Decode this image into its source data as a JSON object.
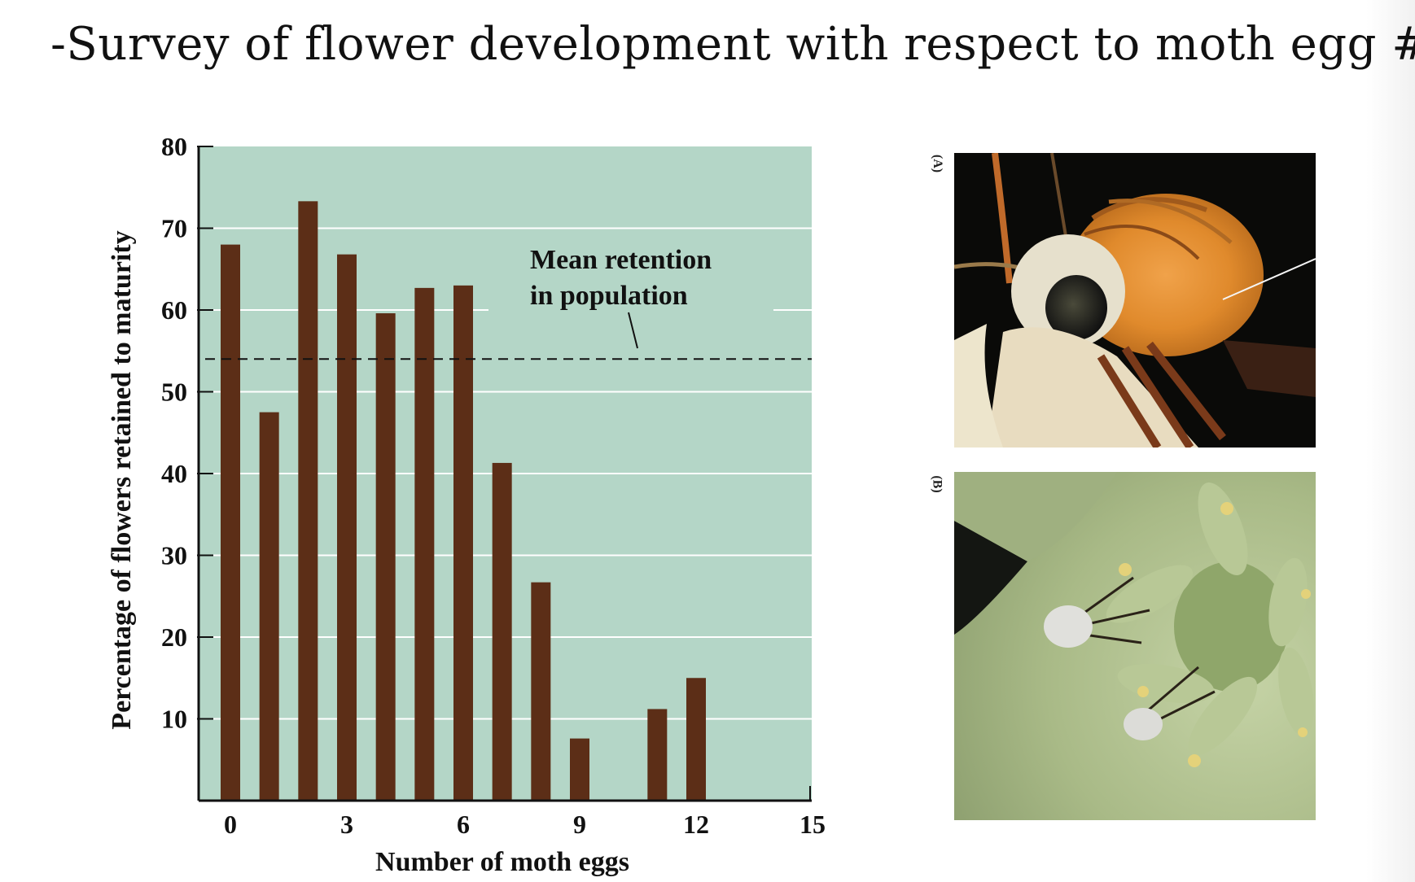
{
  "slide": {
    "title": "-Survey of flower development with respect to moth egg #s"
  },
  "colors": {
    "plot_background": "#b4d6c7",
    "bar": "#5c2e17",
    "gridline": "#ffffff",
    "axis": "#111111"
  },
  "chart_data": {
    "type": "bar",
    "xlabel": "Number of moth eggs",
    "ylabel": "Percentage of flowers retained to maturity",
    "x": [
      0,
      1,
      2,
      3,
      4,
      5,
      6,
      7,
      8,
      9,
      11,
      12
    ],
    "values": [
      68,
      47.5,
      73.3,
      66.8,
      59.6,
      62.7,
      63,
      41.3,
      26.7,
      7.6,
      11.2,
      15
    ],
    "xlim": [
      -0.5,
      15
    ],
    "ylim": [
      0,
      80
    ],
    "xticks": [
      0,
      3,
      6,
      9,
      12,
      15
    ],
    "yticks": [
      10,
      20,
      30,
      40,
      50,
      60,
      70,
      80
    ],
    "grid": true,
    "reference_line": {
      "label_line1": "Mean retention",
      "label_line2": "in population",
      "value": 54,
      "style": "dashed"
    }
  },
  "photos": [
    {
      "label": "(A)",
      "subject": "moth head with pollen mass"
    },
    {
      "label": "(B)",
      "subject": "moths on yucca flower"
    }
  ]
}
